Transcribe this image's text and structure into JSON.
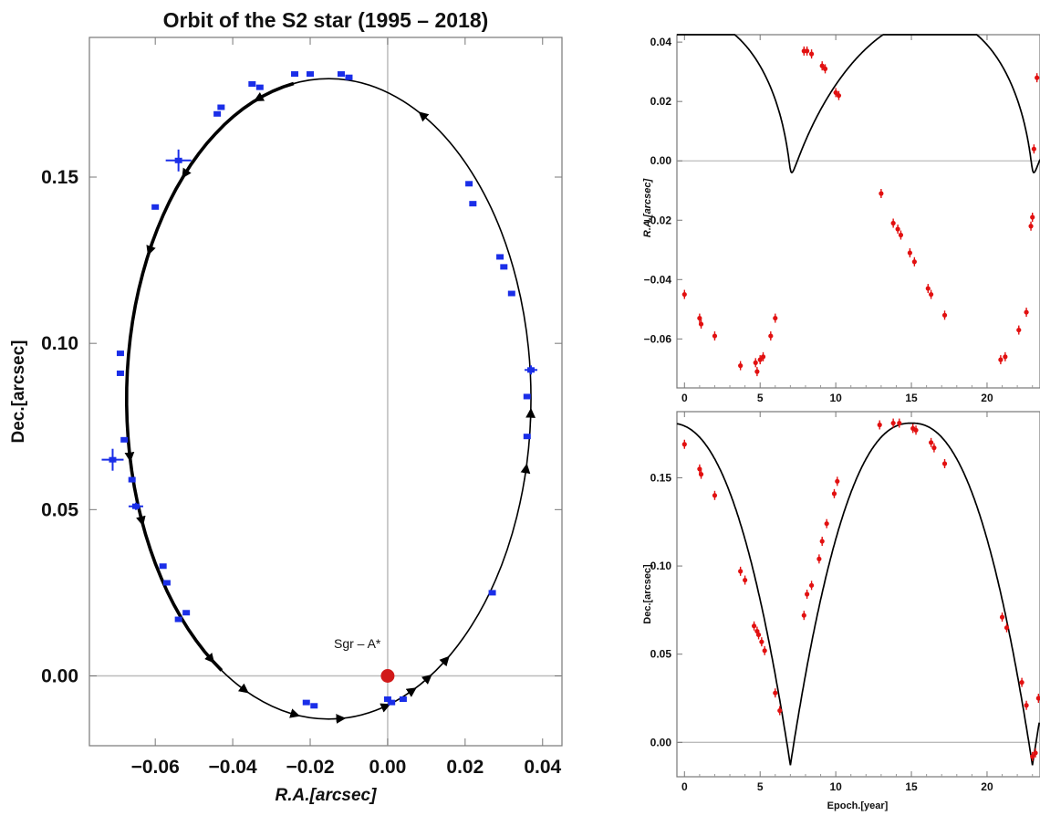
{
  "chart_data": [
    {
      "type": "scatter",
      "title": "Orbit of the S2 star (1995 – 2018)",
      "xlabel": "R.A.[arcsec]",
      "ylabel": "Dec.[arcsec]",
      "xlim": [
        -0.077,
        0.045
      ],
      "ylim": [
        -0.021,
        0.192
      ],
      "xticks": [
        -0.06,
        -0.04,
        -0.02,
        0.0,
        0.02,
        0.04
      ],
      "xtick_labels": [
        "−0.06",
        "−0.04",
        "−0.02",
        "0.00",
        "0.02",
        "0.04"
      ],
      "yticks": [
        0.0,
        0.05,
        0.1,
        0.15
      ],
      "ytick_labels": [
        "0.00",
        "0.05",
        "0.10",
        "0.15"
      ],
      "annotation": "Sgr – A*",
      "focus": {
        "x": 0.0,
        "y": 0.0,
        "color": "#d11a1a"
      },
      "orbit_fit": {
        "center": [
          -0.0152,
          0.0833
        ],
        "semi_axes": [
          0.0522,
          0.0963
        ],
        "color": "#000000"
      },
      "point_color": "#1a2ee8",
      "series": [
        {
          "x": [
            -0.02,
            -0.024,
            -0.01,
            -0.012,
            -0.033,
            -0.035,
            -0.044,
            -0.043,
            -0.054,
            -0.06,
            0.021,
            0.022,
            0.029,
            0.03,
            0.032,
            -0.069,
            -0.069,
            0.037,
            0.036,
            0.036,
            -0.071,
            -0.068,
            -0.066,
            -0.065,
            -0.058,
            -0.057,
            -0.054,
            -0.052,
            0.027,
            -0.021,
            -0.019,
            0.0,
            0.001,
            0.004
          ],
          "y": [
            0.181,
            0.181,
            0.18,
            0.181,
            0.177,
            0.178,
            0.169,
            0.171,
            0.155,
            0.141,
            0.148,
            0.142,
            0.126,
            0.123,
            0.115,
            0.097,
            0.091,
            0.092,
            0.084,
            0.072,
            0.065,
            0.071,
            0.059,
            0.051,
            0.033,
            0.028,
            0.017,
            0.019,
            0.025,
            -0.008,
            -0.009,
            -0.007,
            -0.008,
            -0.007
          ]
        }
      ]
    },
    {
      "type": "line",
      "xlabel": "Epoch.[year]",
      "ylabel": "R.A.[arcsec]",
      "xlim": [
        -0.5,
        23.5
      ],
      "ylim": [
        -0.0765,
        0.0425
      ],
      "xticks": [
        0,
        5,
        10,
        15,
        20
      ],
      "xtick_labels": [
        "0",
        "5",
        "10",
        "15",
        "20"
      ],
      "yticks": [
        0.04,
        0.02,
        0.0,
        -0.02,
        -0.04,
        -0.06
      ],
      "ytick_labels": [
        "0.04",
        "0.02",
        "0.00",
        "−0.02",
        "−0.04",
        "−0.06"
      ],
      "point_color": "#e21010",
      "series": [
        {
          "x": [
            0.0,
            1.0,
            1.1,
            2.0,
            3.7,
            4.7,
            4.8,
            5.0,
            5.2,
            5.7,
            6.0,
            7.9,
            8.1,
            8.4,
            9.1,
            9.3,
            10.0,
            10.2,
            13.0,
            13.8,
            14.1,
            14.3,
            14.9,
            15.2,
            16.1,
            16.3,
            17.2,
            20.9,
            21.2,
            22.1,
            22.6,
            22.9,
            23.0,
            23.1,
            23.3
          ],
          "y": [
            -0.045,
            -0.053,
            -0.055,
            -0.059,
            -0.069,
            -0.068,
            -0.071,
            -0.067,
            -0.066,
            -0.059,
            -0.053,
            0.037,
            0.037,
            0.036,
            0.032,
            0.031,
            0.023,
            0.022,
            -0.011,
            -0.021,
            -0.023,
            -0.025,
            -0.031,
            -0.034,
            -0.043,
            -0.045,
            -0.052,
            -0.067,
            -0.066,
            -0.057,
            -0.051,
            -0.022,
            -0.019,
            0.004,
            0.028
          ]
        }
      ]
    },
    {
      "type": "line",
      "xlabel": "Epoch.[year]",
      "ylabel": "Dec.[arcsec]",
      "xlim": [
        -0.5,
        23.5
      ],
      "ylim": [
        -0.0195,
        0.1875
      ],
      "xticks": [
        0,
        5,
        10,
        15,
        20
      ],
      "xtick_labels": [
        "0",
        "5",
        "10",
        "15",
        "20"
      ],
      "yticks": [
        0.15,
        0.1,
        0.05,
        0.0
      ],
      "ytick_labels": [
        "0.15",
        "0.10",
        "0.05",
        "0.00"
      ],
      "point_color": "#e21010",
      "series": [
        {
          "x": [
            0.0,
            1.0,
            1.1,
            2.0,
            3.7,
            4.0,
            4.6,
            4.8,
            4.9,
            5.1,
            5.3,
            6.0,
            6.3,
            7.9,
            8.1,
            8.4,
            8.9,
            9.1,
            9.4,
            9.9,
            10.1,
            12.9,
            13.8,
            14.2,
            15.1,
            15.3,
            16.3,
            16.5,
            17.2,
            21.0,
            21.3,
            22.3,
            22.6,
            23.0,
            23.2,
            23.4
          ],
          "y": [
            0.169,
            0.155,
            0.152,
            0.14,
            0.097,
            0.092,
            0.066,
            0.063,
            0.061,
            0.057,
            0.052,
            0.028,
            0.018,
            0.072,
            0.084,
            0.089,
            0.104,
            0.114,
            0.124,
            0.141,
            0.148,
            0.18,
            0.181,
            0.181,
            0.178,
            0.177,
            0.17,
            0.167,
            0.158,
            0.071,
            0.065,
            0.034,
            0.021,
            -0.008,
            -0.006,
            0.025
          ]
        }
      ]
    }
  ]
}
